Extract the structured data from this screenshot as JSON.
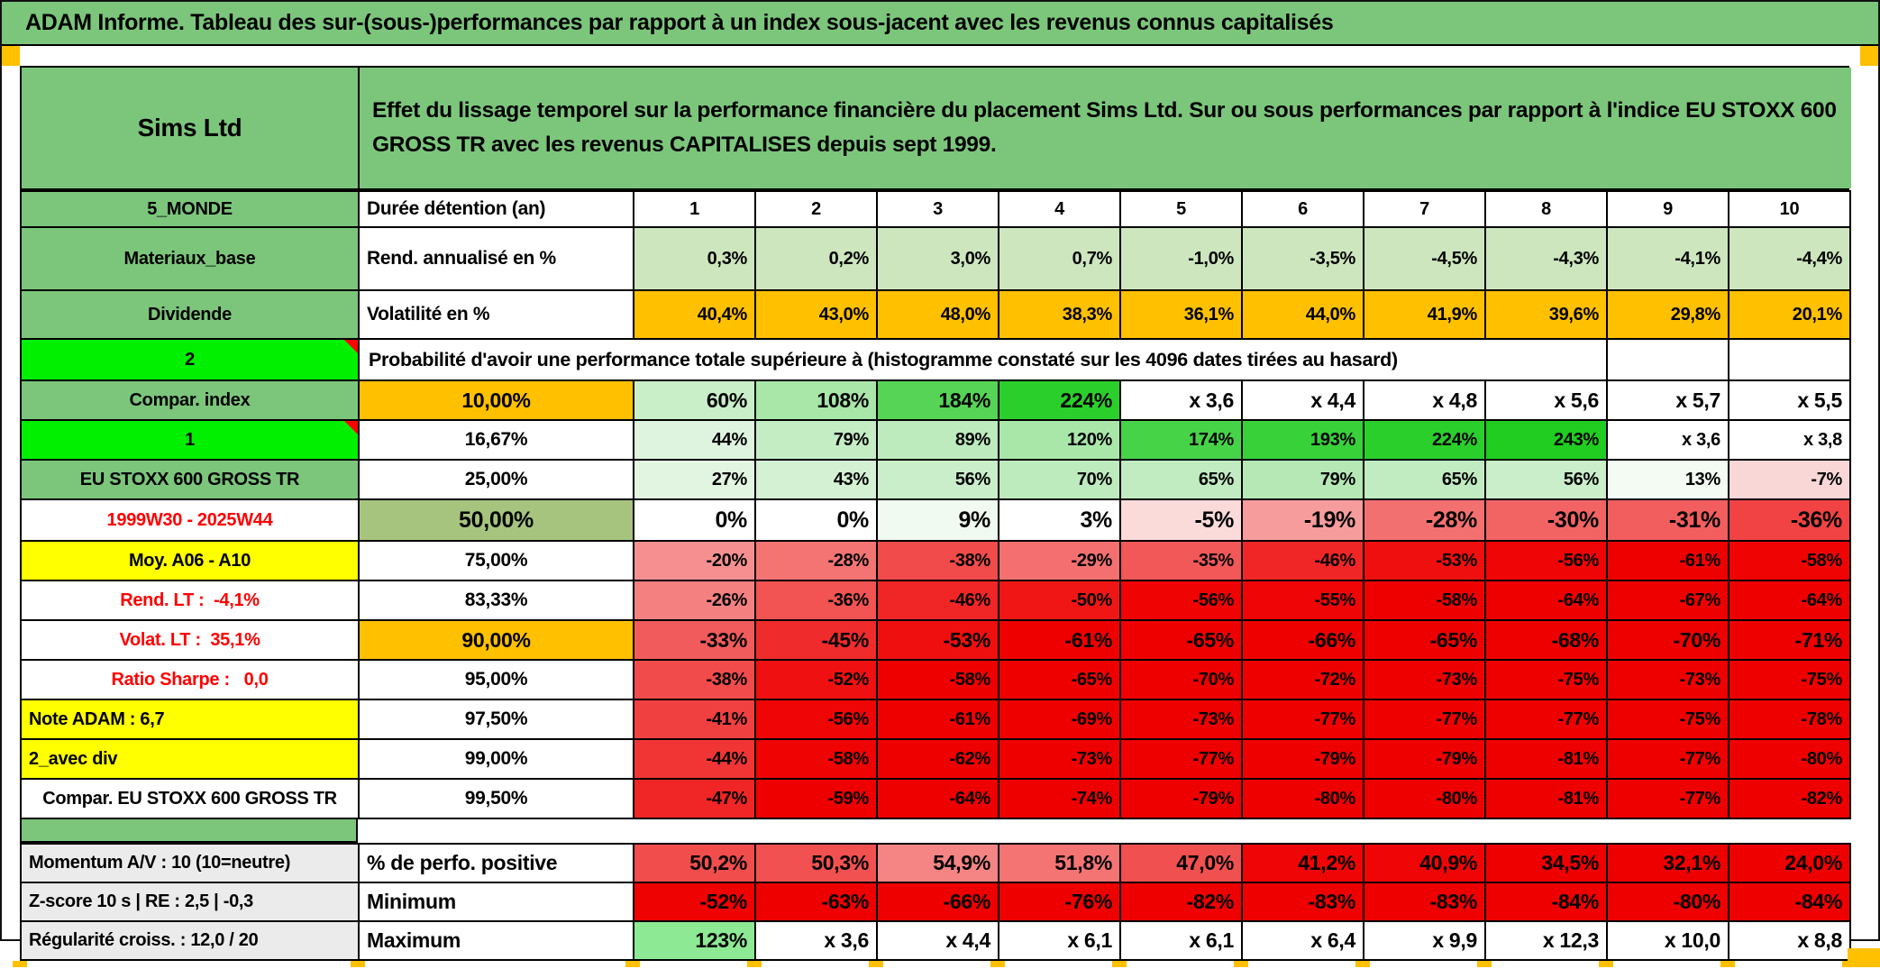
{
  "title_bar": {
    "text": "ADAM Informe. Tableau des sur-(sous-)performances par rapport à un index sous-jacent avec les revenus connus capitalisés"
  },
  "header": {
    "company": "Sims Ltd",
    "description": "Effet du lissage temporel sur la performance financière du placement Sims Ltd. Sur ou sous performances par rapport à l'indice EU STOXX 600 GROSS TR avec les revenus CAPITALISES depuis sept 1999."
  },
  "colors": {
    "header_green": "#7CC67C",
    "bright_green": "#00F000",
    "orange": "#FFC000",
    "yellow": "#FFFF00",
    "sage": "#A6C47E",
    "light_green_row": "#CDE6BD",
    "label_gray": "#EBEBEB",
    "full_red": "#EF0000",
    "red_text": "#FF0000"
  },
  "columns": [
    "1",
    "2",
    "3",
    "4",
    "5",
    "6",
    "7",
    "8",
    "9",
    "10"
  ],
  "main_rows": [
    {
      "id": "duration-header",
      "cells_align": "center",
      "a": {
        "t": "5_MONDE",
        "bg": "#7CC67C"
      },
      "b": {
        "t": "Durée détention (an)",
        "align": "left"
      },
      "cells": [
        {
          "t": "1"
        },
        {
          "t": "2"
        },
        {
          "t": "3"
        },
        {
          "t": "4"
        },
        {
          "t": "5"
        },
        {
          "t": "6"
        },
        {
          "t": "7"
        },
        {
          "t": "8"
        },
        {
          "t": "9"
        },
        {
          "t": "10"
        }
      ]
    },
    {
      "id": "annualized-return",
      "a": {
        "t": "Materiaux_base",
        "bg": "#7CC67C"
      },
      "b": {
        "t": "Rend. annualisé en %",
        "align": "left"
      },
      "cells": [
        {
          "t": "0,3%",
          "bg": "#CDE6BD"
        },
        {
          "t": "0,2%",
          "bg": "#CDE6BD"
        },
        {
          "t": "3,0%",
          "bg": "#CDE6BD"
        },
        {
          "t": "0,7%",
          "bg": "#CDE6BD"
        },
        {
          "t": "-1,0%",
          "bg": "#CDE6BD"
        },
        {
          "t": "-3,5%",
          "bg": "#CDE6BD"
        },
        {
          "t": "-4,5%",
          "bg": "#CDE6BD"
        },
        {
          "t": "-4,3%",
          "bg": "#CDE6BD"
        },
        {
          "t": "-4,1%",
          "bg": "#CDE6BD"
        },
        {
          "t": "-4,4%",
          "bg": "#CDE6BD"
        }
      ]
    },
    {
      "id": "volatility",
      "a": {
        "t": "Dividende",
        "bg": "#7CC67C"
      },
      "b": {
        "t": "Volatilité en %",
        "align": "left"
      },
      "cells": [
        {
          "t": "40,4%",
          "bg": "#FFC000"
        },
        {
          "t": "43,0%",
          "bg": "#FFC000"
        },
        {
          "t": "48,0%",
          "bg": "#FFC000"
        },
        {
          "t": "38,3%",
          "bg": "#FFC000"
        },
        {
          "t": "36,1%",
          "bg": "#FFC000"
        },
        {
          "t": "44,0%",
          "bg": "#FFC000"
        },
        {
          "t": "41,9%",
          "bg": "#FFC000"
        },
        {
          "t": "39,6%",
          "bg": "#FFC000"
        },
        {
          "t": "29,8%",
          "bg": "#FFC000"
        },
        {
          "t": "20,1%",
          "bg": "#FFC000"
        }
      ]
    },
    {
      "id": "probability-note",
      "a": {
        "t": "2",
        "bg": "#00F000",
        "tri": true
      },
      "span": {
        "t": "Probabilité d'avoir une performance totale supérieure à (histogramme constaté sur les 4096 dates tirées au hasard)",
        "cols": 9
      },
      "empty_cells": 2
    },
    {
      "id": "percentile-10",
      "emph": true,
      "a": {
        "t": "Compar. index",
        "bg": "#7CC67C"
      },
      "b": {
        "t": "10,00%",
        "bg": "#FFC000"
      },
      "cells": [
        {
          "t": "60%",
          "bg": "#C9EFC9"
        },
        {
          "t": "108%",
          "bg": "#A9E7A9"
        },
        {
          "t": "184%",
          "bg": "#55D455"
        },
        {
          "t": "224%",
          "bg": "#2BCF2B"
        },
        {
          "t": "x 3,6"
        },
        {
          "t": "x 4,4"
        },
        {
          "t": "x 4,8"
        },
        {
          "t": "x 5,6"
        },
        {
          "t": "x 5,7"
        },
        {
          "t": "x 5,5"
        }
      ]
    },
    {
      "id": "percentile-1667",
      "a": {
        "t": "1",
        "bg": "#00F000",
        "tri": true
      },
      "b": {
        "t": "16,67%"
      },
      "cells": [
        {
          "t": "44%",
          "bg": "#DEF4DE"
        },
        {
          "t": "79%",
          "bg": "#C4EDC4"
        },
        {
          "t": "89%",
          "bg": "#BDEBBD"
        },
        {
          "t": "120%",
          "bg": "#A9E7A9"
        },
        {
          "t": "174%",
          "bg": "#47D347"
        },
        {
          "t": "193%",
          "bg": "#39D139"
        },
        {
          "t": "224%",
          "bg": "#2BCF2B"
        },
        {
          "t": "243%",
          "bg": "#20CD20"
        },
        {
          "t": "x 3,6"
        },
        {
          "t": "x 3,8"
        }
      ]
    },
    {
      "id": "percentile-25",
      "a": {
        "t": "EU STOXX 600 GROSS TR",
        "bg": "#7CC67C"
      },
      "b": {
        "t": "25,00%"
      },
      "cells": [
        {
          "t": "27%",
          "bg": "#E1F5E1"
        },
        {
          "t": "43%",
          "bg": "#D4F1D4"
        },
        {
          "t": "56%",
          "bg": "#CAEECA"
        },
        {
          "t": "70%",
          "bg": "#BEEBBE"
        },
        {
          "t": "65%",
          "bg": "#C1ECC1"
        },
        {
          "t": "79%",
          "bg": "#B5E8B5"
        },
        {
          "t": "65%",
          "bg": "#C1ECC1"
        },
        {
          "t": "56%",
          "bg": "#CAEECA"
        },
        {
          "t": "13%",
          "bg": "#F3FBF3"
        },
        {
          "t": "-7%",
          "bg": "#F9D7D7"
        }
      ]
    },
    {
      "id": "percentile-50",
      "emph": true,
      "a": {
        "t": "1999W30 - 2025W44",
        "color": "#FF0000"
      },
      "b": {
        "t": "50,00%",
        "bg": "#A6C47E"
      },
      "cells": [
        {
          "t": "0%"
        },
        {
          "t": "0%"
        },
        {
          "t": "9%",
          "bg": "#F0FAF0"
        },
        {
          "t": "3%"
        },
        {
          "t": "-5%",
          "bg": "#FBDADA"
        },
        {
          "t": "-19%",
          "bg": "#F69C9C"
        },
        {
          "t": "-28%",
          "bg": "#F37070"
        },
        {
          "t": "-30%",
          "bg": "#F26464"
        },
        {
          "t": "-31%",
          "bg": "#F25E5E"
        },
        {
          "t": "-36%",
          "bg": "#F14343"
        }
      ]
    },
    {
      "id": "percentile-75",
      "a": {
        "t": "Moy. A06 - A10",
        "bg": "#FFFF00"
      },
      "b": {
        "t": "75,00%"
      },
      "cells": [
        {
          "t": "-20%",
          "bg": "#F69090"
        },
        {
          "t": "-28%",
          "bg": "#F47474"
        },
        {
          "t": "-38%",
          "bg": "#F14B4B"
        },
        {
          "t": "-29%",
          "bg": "#F47070"
        },
        {
          "t": "-35%",
          "bg": "#F25858"
        },
        {
          "t": "-46%",
          "bg": "#F02626"
        },
        {
          "t": "-53%",
          "bg": "#EF0F0F"
        },
        {
          "t": "-56%",
          "bg": "#EF0505"
        },
        {
          "t": "-61%",
          "bg": "#EF0000"
        },
        {
          "t": "-58%",
          "bg": "#EF0303"
        }
      ]
    },
    {
      "id": "percentile-8333",
      "a": {
        "t": "Rend. LT :  -4,1%",
        "color": "#FF0000"
      },
      "b": {
        "t": "83,33%"
      },
      "cells": [
        {
          "t": "-26%",
          "bg": "#F48080"
        },
        {
          "t": "-36%",
          "bg": "#F25353"
        },
        {
          "t": "-46%",
          "bg": "#F02626"
        },
        {
          "t": "-50%",
          "bg": "#F01616"
        },
        {
          "t": "-56%",
          "bg": "#EF0303"
        },
        {
          "t": "-55%",
          "bg": "#EF0505"
        },
        {
          "t": "-58%",
          "bg": "#EF0000"
        },
        {
          "t": "-64%",
          "bg": "#EF0000"
        },
        {
          "t": "-67%",
          "bg": "#EF0000"
        },
        {
          "t": "-64%",
          "bg": "#EF0000"
        }
      ]
    },
    {
      "id": "percentile-90",
      "emph": true,
      "a": {
        "t": "Volat. LT :  35,1%",
        "color": "#FF0000"
      },
      "b": {
        "t": "90,00%",
        "bg": "#FFC000"
      },
      "cells": [
        {
          "t": "-33%",
          "bg": "#F25B5B"
        },
        {
          "t": "-45%",
          "bg": "#F02B2B"
        },
        {
          "t": "-53%",
          "bg": "#EF0F0F"
        },
        {
          "t": "-61%",
          "bg": "#EF0000"
        },
        {
          "t": "-65%",
          "bg": "#EF0000"
        },
        {
          "t": "-66%",
          "bg": "#EF0000"
        },
        {
          "t": "-65%",
          "bg": "#EF0000"
        },
        {
          "t": "-68%",
          "bg": "#EF0000"
        },
        {
          "t": "-70%",
          "bg": "#EF0000"
        },
        {
          "t": "-71%",
          "bg": "#EF0000"
        }
      ]
    },
    {
      "id": "percentile-95",
      "a": {
        "t": "Ratio Sharpe :   0,0",
        "color": "#FF0000"
      },
      "b": {
        "t": "95,00%"
      },
      "cells": [
        {
          "t": "-38%",
          "bg": "#F14B4B"
        },
        {
          "t": "-52%",
          "bg": "#EF1111"
        },
        {
          "t": "-58%",
          "bg": "#EF0000"
        },
        {
          "t": "-65%",
          "bg": "#EF0000"
        },
        {
          "t": "-70%",
          "bg": "#EF0000"
        },
        {
          "t": "-72%",
          "bg": "#EF0000"
        },
        {
          "t": "-73%",
          "bg": "#EF0000"
        },
        {
          "t": "-75%",
          "bg": "#EF0000"
        },
        {
          "t": "-73%",
          "bg": "#EF0000"
        },
        {
          "t": "-75%",
          "bg": "#EF0000"
        }
      ]
    },
    {
      "id": "percentile-975",
      "a": {
        "t": "Note ADAM : 6,7",
        "bg": "#FFFF00",
        "align": "left"
      },
      "b": {
        "t": "97,50%"
      },
      "cells": [
        {
          "t": "-41%",
          "bg": "#F14040"
        },
        {
          "t": "-56%",
          "bg": "#EF0505"
        },
        {
          "t": "-61%",
          "bg": "#EF0000"
        },
        {
          "t": "-69%",
          "bg": "#EF0000"
        },
        {
          "t": "-73%",
          "bg": "#EF0000"
        },
        {
          "t": "-77%",
          "bg": "#EF0000"
        },
        {
          "t": "-77%",
          "bg": "#EF0000"
        },
        {
          "t": "-77%",
          "bg": "#EF0000"
        },
        {
          "t": "-75%",
          "bg": "#EF0000"
        },
        {
          "t": "-78%",
          "bg": "#EF0000"
        }
      ]
    },
    {
      "id": "percentile-99",
      "a": {
        "t": "2_avec div",
        "bg": "#FFFF00",
        "align": "left"
      },
      "b": {
        "t": "99,00%"
      },
      "cells": [
        {
          "t": "-44%",
          "bg": "#F13535"
        },
        {
          "t": "-58%",
          "bg": "#EF0303"
        },
        {
          "t": "-62%",
          "bg": "#EF0000"
        },
        {
          "t": "-73%",
          "bg": "#EF0000"
        },
        {
          "t": "-77%",
          "bg": "#EF0000"
        },
        {
          "t": "-79%",
          "bg": "#EF0000"
        },
        {
          "t": "-79%",
          "bg": "#EF0000"
        },
        {
          "t": "-81%",
          "bg": "#EF0000"
        },
        {
          "t": "-77%",
          "bg": "#EF0000"
        },
        {
          "t": "-80%",
          "bg": "#EF0000"
        }
      ]
    },
    {
      "id": "percentile-995",
      "a": {
        "t": "Compar. EU STOXX 600 GROSS TR"
      },
      "b": {
        "t": "99,50%"
      },
      "cells": [
        {
          "t": "-47%",
          "bg": "#F02525"
        },
        {
          "t": "-59%",
          "bg": "#EF0000"
        },
        {
          "t": "-64%",
          "bg": "#EF0000"
        },
        {
          "t": "-74%",
          "bg": "#EF0000"
        },
        {
          "t": "-79%",
          "bg": "#EF0000"
        },
        {
          "t": "-80%",
          "bg": "#EF0000"
        },
        {
          "t": "-80%",
          "bg": "#EF0000"
        },
        {
          "t": "-81%",
          "bg": "#EF0000"
        },
        {
          "t": "-77%",
          "bg": "#EF0000"
        },
        {
          "t": "-82%",
          "bg": "#EF0000"
        }
      ]
    }
  ],
  "footer_rows": [
    {
      "id": "positive-perf",
      "emph": true,
      "a": {
        "t": "Momentum A/V : 10 (10=neutre)",
        "bg": "#EBEBEB",
        "align": "left"
      },
      "b": {
        "t": "% de perfo. positive",
        "align": "left"
      },
      "cells": [
        {
          "t": "50,2%",
          "bg": "#F14D4D"
        },
        {
          "t": "50,3%",
          "bg": "#F15151"
        },
        {
          "t": "54,9%",
          "bg": "#F58484"
        },
        {
          "t": "51,8%",
          "bg": "#F47474"
        },
        {
          "t": "47,0%",
          "bg": "#F15050"
        },
        {
          "t": "41,2%",
          "bg": "#EF0505"
        },
        {
          "t": "40,9%",
          "bg": "#EF0505"
        },
        {
          "t": "34,5%",
          "bg": "#EF0000"
        },
        {
          "t": "32,1%",
          "bg": "#EF0000"
        },
        {
          "t": "24,0%",
          "bg": "#EF0000"
        }
      ]
    },
    {
      "id": "minimum",
      "emph": true,
      "a": {
        "t": "Z-score 10 s | RE : 2,5 | -0,3",
        "bg": "#EBEBEB",
        "align": "left"
      },
      "b": {
        "t": "Minimum",
        "align": "left"
      },
      "cells": [
        {
          "t": "-52%",
          "bg": "#EF0202"
        },
        {
          "t": "-63%",
          "bg": "#EF0000"
        },
        {
          "t": "-66%",
          "bg": "#EF0000"
        },
        {
          "t": "-76%",
          "bg": "#EF0000"
        },
        {
          "t": "-82%",
          "bg": "#EF0000"
        },
        {
          "t": "-83%",
          "bg": "#EF0000"
        },
        {
          "t": "-83%",
          "bg": "#EF0000"
        },
        {
          "t": "-84%",
          "bg": "#EF0000"
        },
        {
          "t": "-80%",
          "bg": "#EF0000"
        },
        {
          "t": "-84%",
          "bg": "#EF0000"
        }
      ]
    },
    {
      "id": "maximum",
      "emph": true,
      "a": {
        "t": "Régularité croiss. : 12,0 / 20",
        "bg": "#EBEBEB",
        "align": "left"
      },
      "b": {
        "t": "Maximum",
        "align": "left"
      },
      "cells": [
        {
          "t": "123%",
          "bg": "#8DE993"
        },
        {
          "t": "x 3,6"
        },
        {
          "t": "x 4,4"
        },
        {
          "t": "x 6,1"
        },
        {
          "t": "x 6,1"
        },
        {
          "t": "x 6,4"
        },
        {
          "t": "x 9,9"
        },
        {
          "t": "x 12,3"
        },
        {
          "t": "x 10,0"
        },
        {
          "t": "x 8,8"
        }
      ]
    }
  ]
}
